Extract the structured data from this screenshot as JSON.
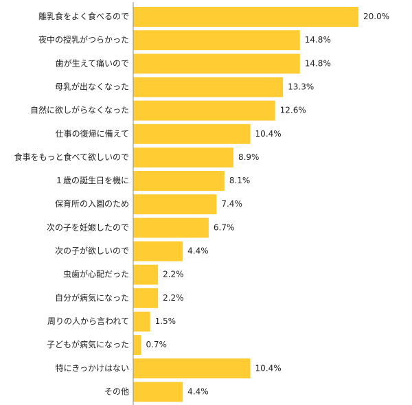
{
  "colors": {
    "bar": "#FFCC33",
    "axis": "#888888",
    "text": "#222222"
  },
  "chart_data": {
    "type": "bar",
    "orientation": "horizontal",
    "categories": [
      "離乳食をよく食べるので",
      "夜中の授乳がつらかった",
      "歯が生えて痛いので",
      "母乳が出なくなった",
      "自然に欲しがらなくなった",
      "仕事の復帰に備えて",
      "食事をもっと食べて欲しいので",
      "１歳の誕生日を機に",
      "保育所の入園のため",
      "次の子を妊娠したので",
      "次の子が欲しいので",
      "虫歯が心配だった",
      "自分が病気になった",
      "周りの人から言われて",
      "子どもが病気になった",
      "特にきっかけはない",
      "その他"
    ],
    "values": [
      20.0,
      14.8,
      14.8,
      13.3,
      12.6,
      10.4,
      8.9,
      8.1,
      7.4,
      6.7,
      4.4,
      2.2,
      2.2,
      1.5,
      0.7,
      10.4,
      4.4
    ],
    "value_labels": [
      "20.0%",
      "14.8%",
      "14.8%",
      "13.3%",
      "12.6%",
      "10.4%",
      "8.9%",
      "8.1%",
      "7.4%",
      "6.7%",
      "4.4%",
      "2.2%",
      "2.2%",
      "1.5%",
      "0.7%",
      "10.4%",
      "4.4%"
    ],
    "xlim": [
      0,
      20.0
    ],
    "grid": false,
    "legend": "none"
  }
}
